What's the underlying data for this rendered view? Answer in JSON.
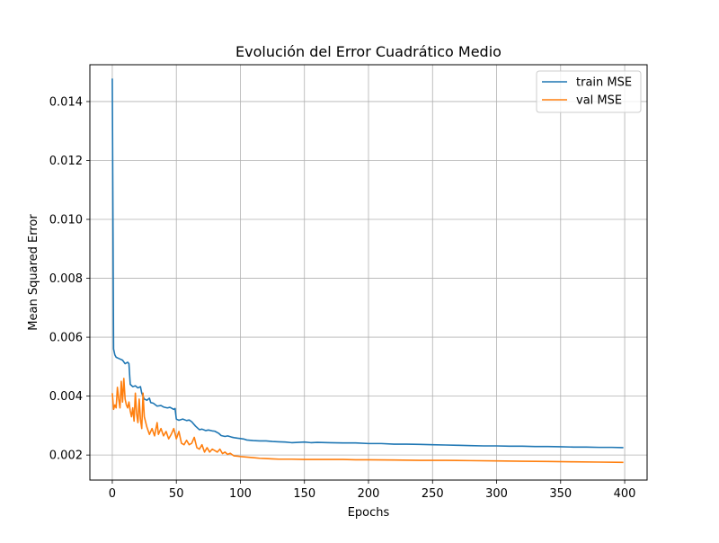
{
  "chart_data": {
    "type": "line",
    "title": "Evolución del Error Cuadrático Medio",
    "xlabel": "Epochs",
    "ylabel": "Mean Squared Error",
    "xlim": [
      -17.5,
      417.5
    ],
    "ylim": [
      0.00115,
      0.01525
    ],
    "xticks": [
      0,
      50,
      100,
      150,
      200,
      250,
      300,
      350,
      400
    ],
    "yticks": [
      0.002,
      0.004,
      0.006,
      0.008,
      0.01,
      0.012,
      0.014
    ],
    "xtick_labels": [
      "0",
      "50",
      "100",
      "150",
      "200",
      "250",
      "300",
      "350",
      "400"
    ],
    "ytick_labels": [
      "0.002",
      "0.004",
      "0.006",
      "0.008",
      "0.010",
      "0.012",
      "0.014"
    ],
    "grid": true,
    "legend_position": "top-right",
    "series": [
      {
        "name": "train MSE",
        "color": "#1f77b4",
        "points": [
          [
            0,
            0.01478
          ],
          [
            1,
            0.0056
          ],
          [
            2,
            0.0054
          ],
          [
            3,
            0.00532
          ],
          [
            5,
            0.00528
          ],
          [
            8,
            0.00522
          ],
          [
            10,
            0.0051
          ],
          [
            12,
            0.00515
          ],
          [
            13,
            0.0051
          ],
          [
            14,
            0.0044
          ],
          [
            16,
            0.00432
          ],
          [
            18,
            0.00435
          ],
          [
            20,
            0.00428
          ],
          [
            22,
            0.00432
          ],
          [
            23,
            0.0041
          ],
          [
            25,
            0.0039
          ],
          [
            27,
            0.00386
          ],
          [
            29,
            0.00393
          ],
          [
            30,
            0.00378
          ],
          [
            32,
            0.00376
          ],
          [
            35,
            0.00366
          ],
          [
            38,
            0.00368
          ],
          [
            40,
            0.00363
          ],
          [
            43,
            0.0036
          ],
          [
            45,
            0.00362
          ],
          [
            48,
            0.00355
          ],
          [
            49,
            0.00358
          ],
          [
            50,
            0.00322
          ],
          [
            52,
            0.00318
          ],
          [
            55,
            0.00322
          ],
          [
            58,
            0.00317
          ],
          [
            60,
            0.00319
          ],
          [
            62,
            0.00313
          ],
          [
            65,
            0.00298
          ],
          [
            68,
            0.00286
          ],
          [
            70,
            0.00288
          ],
          [
            73,
            0.00283
          ],
          [
            75,
            0.00285
          ],
          [
            78,
            0.00282
          ],
          [
            80,
            0.00281
          ],
          [
            83,
            0.00274
          ],
          [
            85,
            0.00266
          ],
          [
            88,
            0.00263
          ],
          [
            90,
            0.00265
          ],
          [
            93,
            0.00261
          ],
          [
            95,
            0.00259
          ],
          [
            98,
            0.00257
          ],
          [
            100,
            0.00256
          ],
          [
            103,
            0.00254
          ],
          [
            105,
            0.00251
          ],
          [
            110,
            0.00249
          ],
          [
            115,
            0.00248
          ],
          [
            120,
            0.00248
          ],
          [
            125,
            0.00246
          ],
          [
            130,
            0.00245
          ],
          [
            135,
            0.00244
          ],
          [
            140,
            0.00242
          ],
          [
            145,
            0.00243
          ],
          [
            150,
            0.00244
          ],
          [
            155,
            0.00242
          ],
          [
            160,
            0.00243
          ],
          [
            170,
            0.00242
          ],
          [
            180,
            0.00241
          ],
          [
            190,
            0.00241
          ],
          [
            200,
            0.00239
          ],
          [
            210,
            0.00239
          ],
          [
            220,
            0.00237
          ],
          [
            230,
            0.00237
          ],
          [
            240,
            0.00236
          ],
          [
            250,
            0.00235
          ],
          [
            260,
            0.00234
          ],
          [
            270,
            0.00233
          ],
          [
            280,
            0.00232
          ],
          [
            290,
            0.00231
          ],
          [
            300,
            0.00231
          ],
          [
            310,
            0.0023
          ],
          [
            320,
            0.0023
          ],
          [
            330,
            0.00229
          ],
          [
            340,
            0.00229
          ],
          [
            350,
            0.00228
          ],
          [
            360,
            0.00227
          ],
          [
            370,
            0.00227
          ],
          [
            380,
            0.00226
          ],
          [
            390,
            0.00226
          ],
          [
            399,
            0.00225
          ]
        ]
      },
      {
        "name": "val MSE",
        "color": "#ff7f0e",
        "points": [
          [
            0,
            0.0041
          ],
          [
            1,
            0.00355
          ],
          [
            2,
            0.0037
          ],
          [
            3,
            0.0036
          ],
          [
            4,
            0.0043
          ],
          [
            5,
            0.0039
          ],
          [
            6,
            0.0036
          ],
          [
            7,
            0.0045
          ],
          [
            8,
            0.0038
          ],
          [
            9,
            0.0046
          ],
          [
            10,
            0.0039
          ],
          [
            11,
            0.0037
          ],
          [
            12,
            0.0036
          ],
          [
            13,
            0.0038
          ],
          [
            14,
            0.0035
          ],
          [
            15,
            0.0033
          ],
          [
            16,
            0.0036
          ],
          [
            17,
            0.00315
          ],
          [
            18,
            0.0041
          ],
          [
            19,
            0.0034
          ],
          [
            20,
            0.0031
          ],
          [
            21,
            0.0039
          ],
          [
            22,
            0.0032
          ],
          [
            23,
            0.0029
          ],
          [
            24,
            0.0041
          ],
          [
            25,
            0.0033
          ],
          [
            27,
            0.00295
          ],
          [
            29,
            0.0027
          ],
          [
            31,
            0.0029
          ],
          [
            33,
            0.00265
          ],
          [
            35,
            0.0031
          ],
          [
            36,
            0.0027
          ],
          [
            38,
            0.0029
          ],
          [
            40,
            0.00265
          ],
          [
            42,
            0.0028
          ],
          [
            44,
            0.00255
          ],
          [
            46,
            0.0027
          ],
          [
            48,
            0.0029
          ],
          [
            50,
            0.00255
          ],
          [
            52,
            0.0028
          ],
          [
            54,
            0.0024
          ],
          [
            56,
            0.00235
          ],
          [
            58,
            0.0025
          ],
          [
            60,
            0.00235
          ],
          [
            62,
            0.0024
          ],
          [
            64,
            0.0026
          ],
          [
            66,
            0.00225
          ],
          [
            68,
            0.0022
          ],
          [
            70,
            0.00235
          ],
          [
            72,
            0.0021
          ],
          [
            74,
            0.00225
          ],
          [
            76,
            0.0021
          ],
          [
            78,
            0.0022
          ],
          [
            80,
            0.00215
          ],
          [
            82,
            0.0021
          ],
          [
            84,
            0.0022
          ],
          [
            86,
            0.00205
          ],
          [
            88,
            0.0021
          ],
          [
            90,
            0.00202
          ],
          [
            92,
            0.00206
          ],
          [
            95,
            0.00197
          ],
          [
            98,
            0.00196
          ],
          [
            100,
            0.00195
          ],
          [
            105,
            0.00193
          ],
          [
            110,
            0.00191
          ],
          [
            115,
            0.00189
          ],
          [
            120,
            0.00188
          ],
          [
            125,
            0.00187
          ],
          [
            130,
            0.00186
          ],
          [
            140,
            0.00186
          ],
          [
            150,
            0.00185
          ],
          [
            160,
            0.00185
          ],
          [
            170,
            0.00185
          ],
          [
            180,
            0.00185
          ],
          [
            190,
            0.00184
          ],
          [
            200,
            0.00184
          ],
          [
            220,
            0.00183
          ],
          [
            240,
            0.00182
          ],
          [
            260,
            0.00182
          ],
          [
            280,
            0.00181
          ],
          [
            300,
            0.0018
          ],
          [
            320,
            0.00179
          ],
          [
            340,
            0.00178
          ],
          [
            360,
            0.00177
          ],
          [
            380,
            0.00176
          ],
          [
            399,
            0.00175
          ]
        ]
      }
    ]
  }
}
